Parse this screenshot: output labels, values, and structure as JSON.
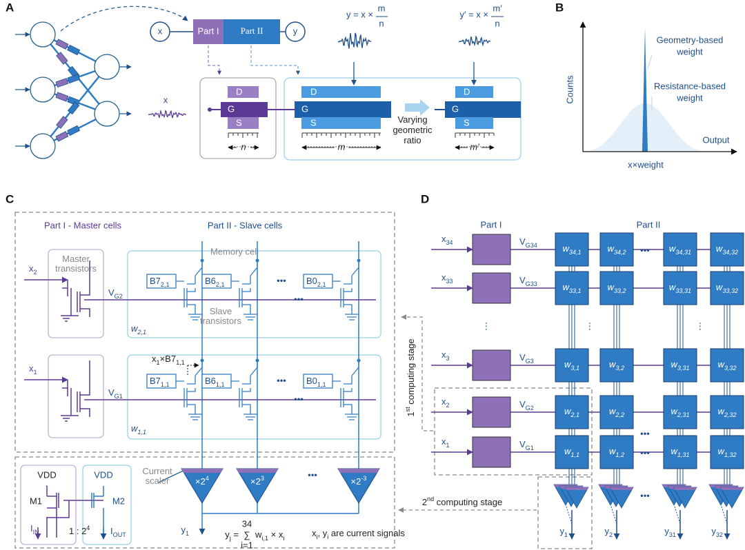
{
  "panel_labels": [
    "A",
    "B",
    "C",
    "D"
  ],
  "panel_a": {
    "x_node": "x",
    "y_node": "y",
    "part1": "Part I",
    "part2": "Part II",
    "formula_y": {
      "lhs": "y = x ×",
      "num": "m",
      "den": "n"
    },
    "formula_y2": {
      "lhs": "y′ = x ×",
      "num": "m′",
      "den": "n"
    },
    "input": "x",
    "terminals": [
      "D",
      "G",
      "S"
    ],
    "widths": [
      "n",
      "m",
      "m′"
    ],
    "arrow_label": [
      "Varying",
      "geometric",
      "ratio"
    ]
  },
  "panel_b": {
    "y_label": "Counts",
    "x_label": "x×weight",
    "output": "Output",
    "geometry": [
      "Geometry-based",
      "weight"
    ],
    "resistance": [
      "Resistance-based",
      "weight"
    ]
  },
  "panel_c": {
    "part1": "Part I - Master cells",
    "part2": "Part II - Slave cells",
    "master": [
      "Master",
      "transistors"
    ],
    "memory": "Memory cell",
    "slave": [
      "Slave",
      "transistors"
    ],
    "ellipsis": "•••",
    "rows": [
      {
        "x": {
          "b": "x",
          "s": "2"
        },
        "vg": {
          "b": "V",
          "s": "G2"
        },
        "w": {
          "b": "w",
          "s": "2,1"
        },
        "cells": [
          {
            "b": "B7",
            "s": "2,1"
          },
          {
            "b": "B6",
            "s": "2,1"
          },
          {
            "b": "B0",
            "s": "2,1"
          }
        ]
      },
      {
        "x": {
          "b": "x",
          "s": "1"
        },
        "vg": {
          "b": "V",
          "s": "G1"
        },
        "w": {
          "b": "w",
          "s": "1,1"
        },
        "cells": [
          {
            "b": "B7",
            "s": "1,1"
          },
          {
            "b": "B6",
            "s": "1,1"
          },
          {
            "b": "B0",
            "s": "1,1"
          }
        ]
      }
    ],
    "product": {
      "b": "x",
      "s": "1",
      "m": "×B7",
      "s2": "1,1"
    },
    "scalers": [
      {
        "b": "×2",
        "sup": "4"
      },
      {
        "b": "×2",
        "sup": "3"
      },
      {
        "b": "×2",
        "sup": "-3"
      }
    ],
    "current_scaler": [
      "Current",
      "scaler"
    ],
    "mirror": {
      "vdd": "VDD",
      "m1": "M1",
      "m2": "M2",
      "iin": {
        "b": "I",
        "s": "IN"
      },
      "iout": {
        "b": "I",
        "s": "OUT"
      },
      "ratio": {
        "b": "1 : 2",
        "sup": "4"
      }
    },
    "y_out": {
      "b": "y",
      "s": "1"
    },
    "equation": {
      "lhs": {
        "b": "y",
        "s": "j",
        "m": " ="
      },
      "sum": "∑",
      "sum_top": "34",
      "sum_bottom": "i=1",
      "rhs": {
        "b": "w",
        "s": "i,1",
        "m": " × x",
        "s2": "i"
      }
    },
    "note": {
      "b": "x",
      "s": "i",
      "m": ", y",
      "s2": "i",
      "t": " are current signals"
    }
  },
  "panel_d": {
    "part1": "Part I",
    "part2": "Part II",
    "ellipsis": "•••",
    "vdots": "⋮",
    "rows": [
      {
        "x": {
          "b": "x",
          "s": "34"
        },
        "vg": {
          "b": "V",
          "s": "G34"
        },
        "w": [
          {
            "b": "w",
            "s": "34,1"
          },
          {
            "b": "w",
            "s": "34,2"
          },
          {
            "b": "w",
            "s": "34,31"
          },
          {
            "b": "w",
            "s": "34,32"
          }
        ]
      },
      {
        "x": {
          "b": "x",
          "s": "33"
        },
        "vg": {
          "b": "V",
          "s": "G33"
        },
        "w": [
          {
            "b": "w",
            "s": "33,1"
          },
          {
            "b": "w",
            "s": "33,2"
          },
          {
            "b": "w",
            "s": "33,31"
          },
          {
            "b": "w",
            "s": "33,32"
          }
        ]
      },
      {
        "x": {
          "b": "x",
          "s": "3"
        },
        "vg": {
          "b": "V",
          "s": "G3"
        },
        "w": [
          {
            "b": "w",
            "s": "3,1"
          },
          {
            "b": "w",
            "s": "3,2"
          },
          {
            "b": "w",
            "s": "3,31"
          },
          {
            "b": "w",
            "s": "3,32"
          }
        ]
      },
      {
        "x": {
          "b": "x",
          "s": "2"
        },
        "vg": {
          "b": "V",
          "s": "G2"
        },
        "w": [
          {
            "b": "w",
            "s": "2,1"
          },
          {
            "b": "w",
            "s": "2,2"
          },
          {
            "b": "w",
            "s": "2,31"
          },
          {
            "b": "w",
            "s": "2,32"
          }
        ]
      },
      {
        "x": {
          "b": "x",
          "s": "1"
        },
        "vg": {
          "b": "V",
          "s": "G1"
        },
        "w": [
          {
            "b": "w",
            "s": "1,1"
          },
          {
            "b": "w",
            "s": "1,2"
          },
          {
            "b": "w",
            "s": "1,31"
          },
          {
            "b": "w",
            "s": "1,32"
          }
        ]
      }
    ],
    "outputs": [
      {
        "b": "y",
        "s": "1"
      },
      {
        "b": "y",
        "s": "2"
      },
      {
        "b": "y",
        "s": "31"
      },
      {
        "b": "y",
        "s": "32"
      }
    ],
    "stage1": {
      "b": "1",
      "sup": "st",
      "t": " computing stage"
    },
    "stage2": {
      "b": "2",
      "sup": "nd",
      "t": " computing stage"
    }
  }
}
